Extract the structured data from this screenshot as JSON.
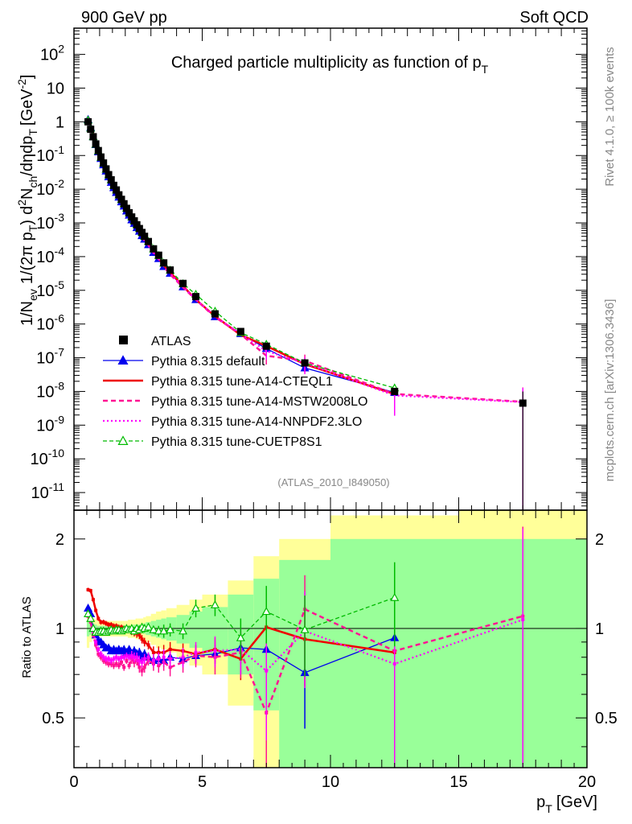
{
  "header": {
    "left": "900 GeV pp",
    "right": "Soft QCD"
  },
  "side": {
    "rivet": "Rivet 4.1.0, ≥ 100k events",
    "mcplots": "mcplots.cern.ch [arXiv:1306.3436]"
  },
  "colors": {
    "data": "#000000",
    "default": "#0000ee",
    "a14cteq": "#ee0000",
    "mstw": "#ff1493",
    "nnpdf": "#ff00ff",
    "cuetp8": "#00bb00",
    "band_yellow": "#ffff99",
    "band_green": "#99ff99"
  },
  "chart_data": [
    {
      "type": "line",
      "title": "Charged particle multiplicity as function of pT",
      "xlabel": "pT [GeV]",
      "ylabel": "1/Nev 1/(2π pT) d2Nch/dηdpT [GeV-2]",
      "yscale": "log",
      "xlim": [
        0,
        20
      ],
      "ylim": [
        3e-12,
        600
      ],
      "ytick_exponents": [
        -11,
        -10,
        -9,
        -8,
        -7,
        -6,
        -5,
        -4,
        -3,
        -2,
        -1,
        0,
        1,
        2
      ],
      "ytick_labels": [
        "10-11",
        "10-10",
        "10-9",
        "10-8",
        "10-7",
        "10-6",
        "10-5",
        "10-4",
        "10-3",
        "10-2",
        "10-1",
        "1",
        "10",
        "102"
      ],
      "analysis": "(ATLAS_2010_I849050)",
      "legend": [
        {
          "key": "data",
          "label": "ATLAS"
        },
        {
          "key": "default",
          "label": "Pythia 8.315 default"
        },
        {
          "key": "a14cteq",
          "label": "Pythia 8.315 tune-A14-CTEQL1"
        },
        {
          "key": "mstw",
          "label": "Pythia 8.315 tune-A14-MSTW2008LO"
        },
        {
          "key": "nnpdf",
          "label": "Pythia 8.315 tune-A14-NNPDF2.3LO"
        },
        {
          "key": "cuetp8",
          "label": "Pythia 8.315 tune-CUETP8S1"
        }
      ],
      "data_x": [
        0.55,
        0.65,
        0.75,
        0.85,
        0.95,
        1.05,
        1.15,
        1.25,
        1.35,
        1.45,
        1.55,
        1.65,
        1.75,
        1.85,
        1.95,
        2.05,
        2.15,
        2.25,
        2.35,
        2.45,
        2.55,
        2.65,
        2.75,
        2.9,
        3.1,
        3.3,
        3.5,
        3.75,
        4.25,
        4.75,
        5.5,
        6.5,
        7.5,
        9.0,
        12.5,
        17.5
      ],
      "data_y": [
        1.0,
        0.6,
        0.36,
        0.22,
        0.14,
        0.09,
        0.06,
        0.04,
        0.027,
        0.019,
        0.013,
        0.0095,
        0.0068,
        0.005,
        0.0037,
        0.0027,
        0.002,
        0.0015,
        0.00115,
        0.00088,
        0.00068,
        0.00052,
        0.0004,
        0.00028,
        0.00017,
        0.00011,
        6.5e-05,
        4e-05,
        1.6e-05,
        6.5e-06,
        2e-06,
        6e-07,
        2.2e-07,
        7e-08,
        1e-08,
        4.5e-09
      ],
      "data_yerr_up": [
        0,
        0,
        0,
        0,
        0,
        0,
        0,
        0,
        0,
        0,
        0,
        0,
        0,
        0,
        0,
        0,
        0,
        0,
        0,
        0,
        0,
        0,
        0,
        0,
        0,
        0,
        0,
        0,
        0,
        0,
        0,
        0,
        0,
        0,
        0,
        5.5e-09
      ]
    },
    {
      "type": "line",
      "xlabel": "pT [GeV]",
      "ylabel": "Ratio to ATLAS",
      "yscale": "log",
      "xlim": [
        0,
        20
      ],
      "ylim": [
        0.34,
        2.5
      ],
      "yticks": [
        0.5,
        1,
        2
      ],
      "xticks": [
        0,
        5,
        10,
        15,
        20
      ],
      "band_edges": [
        0.5,
        0.6,
        0.7,
        0.8,
        0.9,
        1.0,
        1.1,
        1.2,
        1.3,
        1.4,
        1.5,
        1.6,
        1.7,
        1.8,
        1.9,
        2.0,
        2.1,
        2.2,
        2.3,
        2.4,
        2.5,
        2.6,
        2.7,
        2.8,
        3.0,
        3.2,
        3.4,
        3.6,
        4.0,
        4.5,
        5.0,
        6.0,
        7.0,
        8.0,
        10.0,
        15.0,
        20.0
      ],
      "band_total": [
        0.14,
        0.1,
        0.08,
        0.07,
        0.06,
        0.06,
        0.06,
        0.06,
        0.06,
        0.06,
        0.06,
        0.06,
        0.06,
        0.06,
        0.06,
        0.06,
        0.07,
        0.07,
        0.07,
        0.08,
        0.08,
        0.08,
        0.09,
        0.1,
        0.12,
        0.14,
        0.15,
        0.17,
        0.2,
        0.25,
        0.3,
        0.45,
        0.75,
        1.0,
        1.4,
        1.6
      ],
      "band_stat": [
        0.06,
        0.05,
        0.04,
        0.03,
        0.02,
        0.02,
        0.02,
        0.02,
        0.02,
        0.02,
        0.02,
        0.02,
        0.02,
        0.02,
        0.02,
        0.02,
        0.02,
        0.02,
        0.03,
        0.03,
        0.03,
        0.03,
        0.04,
        0.05,
        0.06,
        0.07,
        0.08,
        0.09,
        0.11,
        0.14,
        0.18,
        0.3,
        0.47,
        0.7,
        1.0,
        1.0
      ],
      "series": [
        {
          "key": "default",
          "x": [
            0.55,
            0.65,
            0.75,
            0.85,
            0.95,
            1.05,
            1.15,
            1.25,
            1.35,
            1.45,
            1.55,
            1.65,
            1.75,
            1.85,
            1.95,
            2.05,
            2.15,
            2.25,
            2.35,
            2.45,
            2.55,
            2.65,
            2.75,
            2.9,
            3.1,
            3.3,
            3.5,
            3.75,
            4.25,
            4.75,
            5.5,
            6.5,
            7.5,
            9.0,
            12.5
          ],
          "y": [
            1.17,
            1.12,
            1.0,
            0.95,
            0.91,
            0.9,
            0.88,
            0.86,
            0.86,
            0.84,
            0.85,
            0.84,
            0.85,
            0.84,
            0.85,
            0.83,
            0.85,
            0.82,
            0.84,
            0.82,
            0.83,
            0.8,
            0.82,
            0.8,
            0.78,
            0.79,
            0.78,
            0.8,
            0.79,
            0.81,
            0.82,
            0.86,
            0.85,
            0.71,
            0.93
          ],
          "err": [
            0.02,
            0.02,
            0.02,
            0.02,
            0.02,
            0.02,
            0.02,
            0.02,
            0.02,
            0.02,
            0.02,
            0.02,
            0.02,
            0.02,
            0.02,
            0.02,
            0.02,
            0.03,
            0.03,
            0.03,
            0.03,
            0.03,
            0.03,
            0.03,
            0.03,
            0.03,
            0.04,
            0.04,
            0.04,
            0.05,
            0.06,
            0.1,
            0.15,
            0.25,
            0.4
          ]
        },
        {
          "key": "a14cteq",
          "x": [
            0.55,
            0.65,
            0.75,
            0.85,
            0.95,
            1.05,
            1.15,
            1.25,
            1.35,
            1.45,
            1.55,
            1.65,
            1.75,
            1.85,
            1.95,
            2.05,
            2.15,
            2.25,
            2.35,
            2.45,
            2.55,
            2.65,
            2.75,
            2.9,
            3.1,
            3.3,
            3.5,
            3.75,
            4.25,
            4.75,
            5.5,
            6.5,
            7.5,
            9.0,
            12.5
          ],
          "y": [
            1.35,
            1.34,
            1.25,
            1.15,
            1.08,
            1.05,
            1.05,
            1.04,
            1.03,
            1.03,
            1.02,
            1.02,
            1.01,
            1.01,
            1.0,
            1.0,
            0.99,
            0.98,
            0.97,
            0.96,
            0.95,
            0.92,
            0.9,
            0.88,
            0.83,
            0.83,
            0.83,
            0.85,
            0.84,
            0.82,
            0.85,
            0.79,
            1.01,
            0.92,
            0.83
          ],
          "err": [
            0.02,
            0.02,
            0.02,
            0.02,
            0.02,
            0.02,
            0.02,
            0.02,
            0.02,
            0.02,
            0.02,
            0.02,
            0.02,
            0.02,
            0.02,
            0.02,
            0.02,
            0.03,
            0.03,
            0.03,
            0.03,
            0.03,
            0.03,
            0.03,
            0.04,
            0.04,
            0.05,
            0.05,
            0.05,
            0.06,
            0.08,
            0.12,
            0.2,
            0.28,
            0.4
          ]
        },
        {
          "key": "mstw",
          "x": [
            0.55,
            0.65,
            0.75,
            0.85,
            0.95,
            1.05,
            1.15,
            1.25,
            1.35,
            1.45,
            1.55,
            1.65,
            1.75,
            1.85,
            1.95,
            2.05,
            2.15,
            2.25,
            2.35,
            2.45,
            2.55,
            2.65,
            2.75,
            2.9,
            3.1,
            3.3,
            3.5,
            3.75,
            4.25,
            4.75,
            5.5,
            6.5,
            7.5,
            9.0,
            12.5,
            17.5
          ],
          "y": [
            1.1,
            1.05,
            0.95,
            0.88,
            0.82,
            0.8,
            0.78,
            0.77,
            0.76,
            0.76,
            0.75,
            0.76,
            0.75,
            0.77,
            0.74,
            0.78,
            0.75,
            0.79,
            0.77,
            0.78,
            0.74,
            0.72,
            0.74,
            0.78,
            0.76,
            0.75,
            0.77,
            0.74,
            0.77,
            0.81,
            0.8,
            0.83,
            0.52,
            1.16,
            0.84,
            1.1
          ],
          "err": [
            0.02,
            0.02,
            0.02,
            0.02,
            0.02,
            0.02,
            0.02,
            0.02,
            0.02,
            0.02,
            0.02,
            0.02,
            0.02,
            0.02,
            0.02,
            0.02,
            0.02,
            0.03,
            0.03,
            0.03,
            0.03,
            0.03,
            0.03,
            0.03,
            0.04,
            0.04,
            0.05,
            0.05,
            0.06,
            0.07,
            0.1,
            0.15,
            0.3,
            0.35,
            0.5,
            1.1
          ]
        },
        {
          "key": "nnpdf",
          "x": [
            0.55,
            0.65,
            0.75,
            0.85,
            0.95,
            1.05,
            1.15,
            1.25,
            1.35,
            1.45,
            1.55,
            1.65,
            1.75,
            1.85,
            1.95,
            2.05,
            2.15,
            2.25,
            2.35,
            2.45,
            2.55,
            2.65,
            2.75,
            2.9,
            3.1,
            3.3,
            3.5,
            3.75,
            4.25,
            4.75,
            5.5,
            6.5,
            7.5,
            9.0,
            12.5,
            17.5
          ],
          "y": [
            1.12,
            1.08,
            0.98,
            0.9,
            0.85,
            0.82,
            0.8,
            0.79,
            0.79,
            0.78,
            0.79,
            0.8,
            0.79,
            0.8,
            0.8,
            0.81,
            0.8,
            0.81,
            0.8,
            0.8,
            0.78,
            0.77,
            0.79,
            0.8,
            0.78,
            0.79,
            0.8,
            0.79,
            0.8,
            0.83,
            0.84,
            0.85,
            0.72,
            0.98,
            0.76,
            1.07
          ],
          "err": [
            0.02,
            0.02,
            0.02,
            0.02,
            0.02,
            0.02,
            0.02,
            0.02,
            0.02,
            0.02,
            0.02,
            0.02,
            0.02,
            0.02,
            0.02,
            0.02,
            0.02,
            0.03,
            0.03,
            0.03,
            0.03,
            0.03,
            0.03,
            0.03,
            0.04,
            0.04,
            0.05,
            0.05,
            0.06,
            0.07,
            0.1,
            0.15,
            0.3,
            0.35,
            0.5,
            1.1
          ]
        },
        {
          "key": "cuetp8",
          "x": [
            0.55,
            0.65,
            0.75,
            0.85,
            0.95,
            1.05,
            1.15,
            1.25,
            1.35,
            1.45,
            1.55,
            1.65,
            1.75,
            1.85,
            1.95,
            2.05,
            2.15,
            2.25,
            2.35,
            2.45,
            2.55,
            2.65,
            2.75,
            2.9,
            3.1,
            3.3,
            3.5,
            3.75,
            4.25,
            4.75,
            5.5,
            6.5,
            7.5,
            9.0,
            12.5
          ],
          "y": [
            1.12,
            1.08,
            1.0,
            0.97,
            0.97,
            0.98,
            0.98,
            0.97,
            0.98,
            0.99,
            0.98,
            0.99,
            0.99,
            0.98,
            0.99,
            1.0,
            0.99,
            1.0,
            0.98,
            1.0,
            0.99,
            1.01,
            1.0,
            1.01,
            0.99,
            0.98,
            0.98,
            0.99,
            0.98,
            1.17,
            1.2,
            0.93,
            1.14,
            0.99,
            1.27
          ],
          "err": [
            0.02,
            0.02,
            0.02,
            0.02,
            0.02,
            0.02,
            0.02,
            0.02,
            0.02,
            0.02,
            0.02,
            0.02,
            0.02,
            0.02,
            0.02,
            0.02,
            0.02,
            0.03,
            0.03,
            0.03,
            0.03,
            0.03,
            0.03,
            0.03,
            0.03,
            0.04,
            0.05,
            0.05,
            0.06,
            0.08,
            0.1,
            0.15,
            0.25,
            0.3,
            0.4
          ]
        }
      ]
    }
  ]
}
